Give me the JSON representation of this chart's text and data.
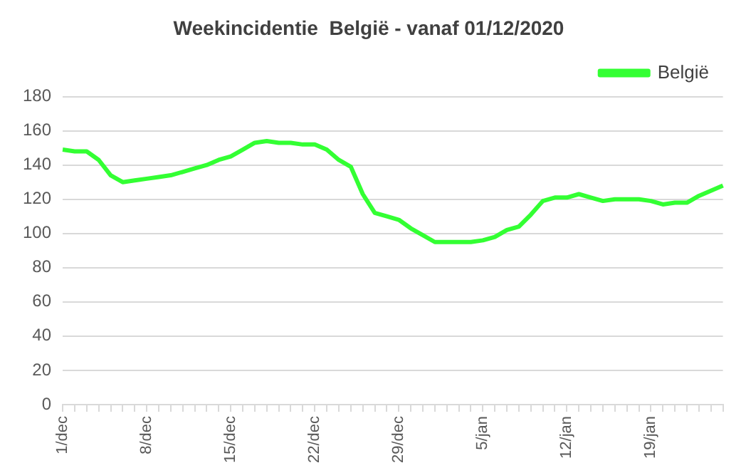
{
  "chart_data": {
    "type": "line",
    "title": "Weekincidentie  België - vanaf 01/12/2020",
    "categories": [
      "1/dec",
      null,
      null,
      null,
      null,
      null,
      null,
      "8/dec",
      null,
      null,
      null,
      null,
      null,
      null,
      "15/dec",
      null,
      null,
      null,
      null,
      null,
      null,
      "22/dec",
      null,
      null,
      null,
      null,
      null,
      null,
      "29/dec",
      null,
      null,
      null,
      null,
      null,
      null,
      "5/jan",
      null,
      null,
      null,
      null,
      null,
      null,
      "12/jan",
      null,
      null,
      null,
      null,
      null,
      null,
      "19/jan",
      null,
      null,
      null,
      null,
      null,
      null
    ],
    "series": [
      {
        "name": "België",
        "color": "#33ff33",
        "values": [
          149,
          148,
          148,
          143,
          134,
          130,
          131,
          132,
          133,
          134,
          136,
          138,
          140,
          143,
          145,
          149,
          153,
          154,
          153,
          153,
          152,
          152,
          149,
          143,
          139,
          123,
          112,
          110,
          108,
          103,
          99,
          95,
          95,
          95,
          95,
          96,
          98,
          102,
          104,
          111,
          119,
          121,
          121,
          123,
          121,
          119,
          120,
          120,
          120,
          119,
          117,
          118,
          118,
          122,
          125,
          128
        ]
      }
    ],
    "ylim": [
      0,
      180
    ],
    "yticks": [
      0,
      20,
      40,
      60,
      80,
      100,
      120,
      140,
      160,
      180
    ],
    "grid": "y",
    "legend": "top right",
    "marker": "none",
    "line_style": "solid"
  }
}
